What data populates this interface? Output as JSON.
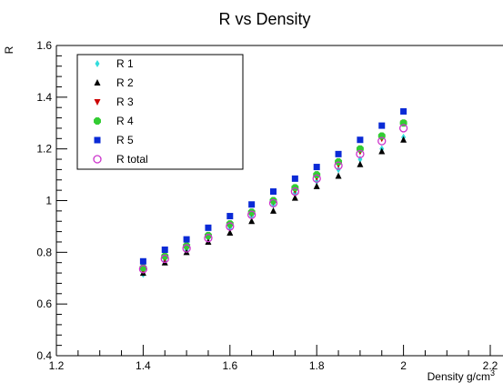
{
  "chart_data": {
    "type": "scatter",
    "title": "R vs Density",
    "xlabel": "Density g/cm",
    "xlabel_superscript": "3",
    "ylabel": "R",
    "xlim": [
      1.2,
      2.2
    ],
    "ylim": [
      0.4,
      1.6
    ],
    "x_ticks": [
      "1.2",
      "1.4",
      "1.6",
      "1.8",
      "2",
      "2.2"
    ],
    "y_ticks": [
      "0.4",
      "0.6",
      "0.8",
      "1",
      "1.2",
      "1.4",
      "1.6"
    ],
    "grid": false,
    "legend_position": "top-left",
    "x": [
      1.4,
      1.45,
      1.5,
      1.55,
      1.6,
      1.65,
      1.7,
      1.75,
      1.8,
      1.85,
      1.9,
      1.95,
      2.0
    ],
    "series": [
      {
        "name": "R 1",
        "marker": "diamond",
        "color": "#33dddd",
        "values": [
          0.715,
          0.765,
          0.81,
          0.855,
          0.895,
          0.94,
          0.985,
          1.03,
          1.075,
          1.12,
          1.16,
          1.2,
          1.245
        ]
      },
      {
        "name": "R 2",
        "marker": "triangle-up",
        "color": "#000000",
        "values": [
          0.72,
          0.76,
          0.8,
          0.84,
          0.875,
          0.92,
          0.96,
          1.01,
          1.055,
          1.095,
          1.14,
          1.19,
          1.235
        ]
      },
      {
        "name": "R 3",
        "marker": "triangle-down",
        "color": "#cc0000",
        "values": [
          0.73,
          0.775,
          0.82,
          0.86,
          0.905,
          0.95,
          0.995,
          1.04,
          1.09,
          1.14,
          1.19,
          1.24,
          1.3
        ]
      },
      {
        "name": "R 4",
        "marker": "octagon",
        "color": "#33cc33",
        "values": [
          0.74,
          0.785,
          0.825,
          0.865,
          0.91,
          0.955,
          1.0,
          1.05,
          1.1,
          1.15,
          1.2,
          1.25,
          1.3
        ]
      },
      {
        "name": "R 5",
        "marker": "square",
        "color": "#0a2ad6",
        "values": [
          0.765,
          0.81,
          0.85,
          0.895,
          0.94,
          0.985,
          1.035,
          1.085,
          1.13,
          1.18,
          1.235,
          1.29,
          1.345
        ]
      },
      {
        "name": "R total",
        "marker": "open-circle",
        "color": "#cc33cc",
        "values": [
          0.735,
          0.775,
          0.815,
          0.855,
          0.9,
          0.945,
          0.99,
          1.035,
          1.085,
          1.135,
          1.18,
          1.23,
          1.28
        ]
      }
    ]
  }
}
